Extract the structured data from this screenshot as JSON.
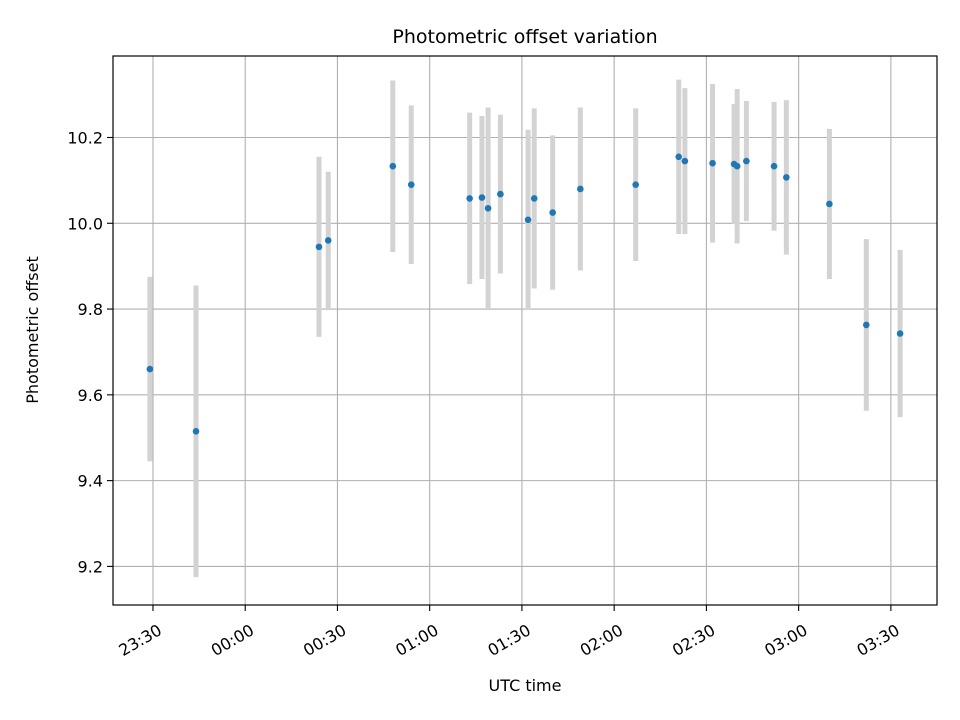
{
  "chart_data": {
    "type": "scatter",
    "title": "Photometric offset variation",
    "xlabel": "UTC time",
    "ylabel": "Photometric offset",
    "x_ticks": [
      "23:30",
      "00:00",
      "00:30",
      "01:00",
      "01:30",
      "02:00",
      "02:30",
      "03:00",
      "03:30"
    ],
    "y_ticks": [
      "9.2",
      "9.4",
      "9.6",
      "9.8",
      "10.0",
      "10.2"
    ],
    "ylim": [
      9.11,
      10.39
    ],
    "xlim": [
      "23:17",
      "03:45"
    ],
    "grid": true,
    "legend": "none",
    "colors": {
      "point": "#1f77b4",
      "errorbar": "#d3d3d3",
      "grid": "#b0b0b0"
    },
    "points": [
      {
        "x": "23:29",
        "y": 9.66,
        "err": 0.215
      },
      {
        "x": "23:44",
        "y": 9.515,
        "err": 0.34
      },
      {
        "x": "00:24",
        "y": 9.945,
        "err": 0.21
      },
      {
        "x": "00:27",
        "y": 9.96,
        "err": 0.16
      },
      {
        "x": "00:48",
        "y": 10.133,
        "err": 0.2
      },
      {
        "x": "00:54",
        "y": 10.09,
        "err": 0.185
      },
      {
        "x": "01:13",
        "y": 10.058,
        "err": 0.2
      },
      {
        "x": "01:17",
        "y": 10.06,
        "err": 0.19
      },
      {
        "x": "01:19",
        "y": 10.035,
        "err": 0.235
      },
      {
        "x": "01:23",
        "y": 10.068,
        "err": 0.185
      },
      {
        "x": "01:32",
        "y": 10.008,
        "err": 0.21
      },
      {
        "x": "01:34",
        "y": 10.058,
        "err": 0.21
      },
      {
        "x": "01:40",
        "y": 10.025,
        "err": 0.18
      },
      {
        "x": "01:49",
        "y": 10.08,
        "err": 0.19
      },
      {
        "x": "02:07",
        "y": 10.09,
        "err": 0.178
      },
      {
        "x": "02:21",
        "y": 10.155,
        "err": 0.18
      },
      {
        "x": "02:23",
        "y": 10.145,
        "err": 0.17
      },
      {
        "x": "02:32",
        "y": 10.14,
        "err": 0.185
      },
      {
        "x": "02:39",
        "y": 10.138,
        "err": 0.14
      },
      {
        "x": "02:40",
        "y": 10.133,
        "err": 0.18
      },
      {
        "x": "02:43",
        "y": 10.145,
        "err": 0.14
      },
      {
        "x": "02:52",
        "y": 10.133,
        "err": 0.15
      },
      {
        "x": "02:56",
        "y": 10.107,
        "err": 0.18
      },
      {
        "x": "03:10",
        "y": 10.045,
        "err": 0.175
      },
      {
        "x": "03:22",
        "y": 9.763,
        "err": 0.2
      },
      {
        "x": "03:33",
        "y": 9.743,
        "err": 0.195
      }
    ]
  }
}
